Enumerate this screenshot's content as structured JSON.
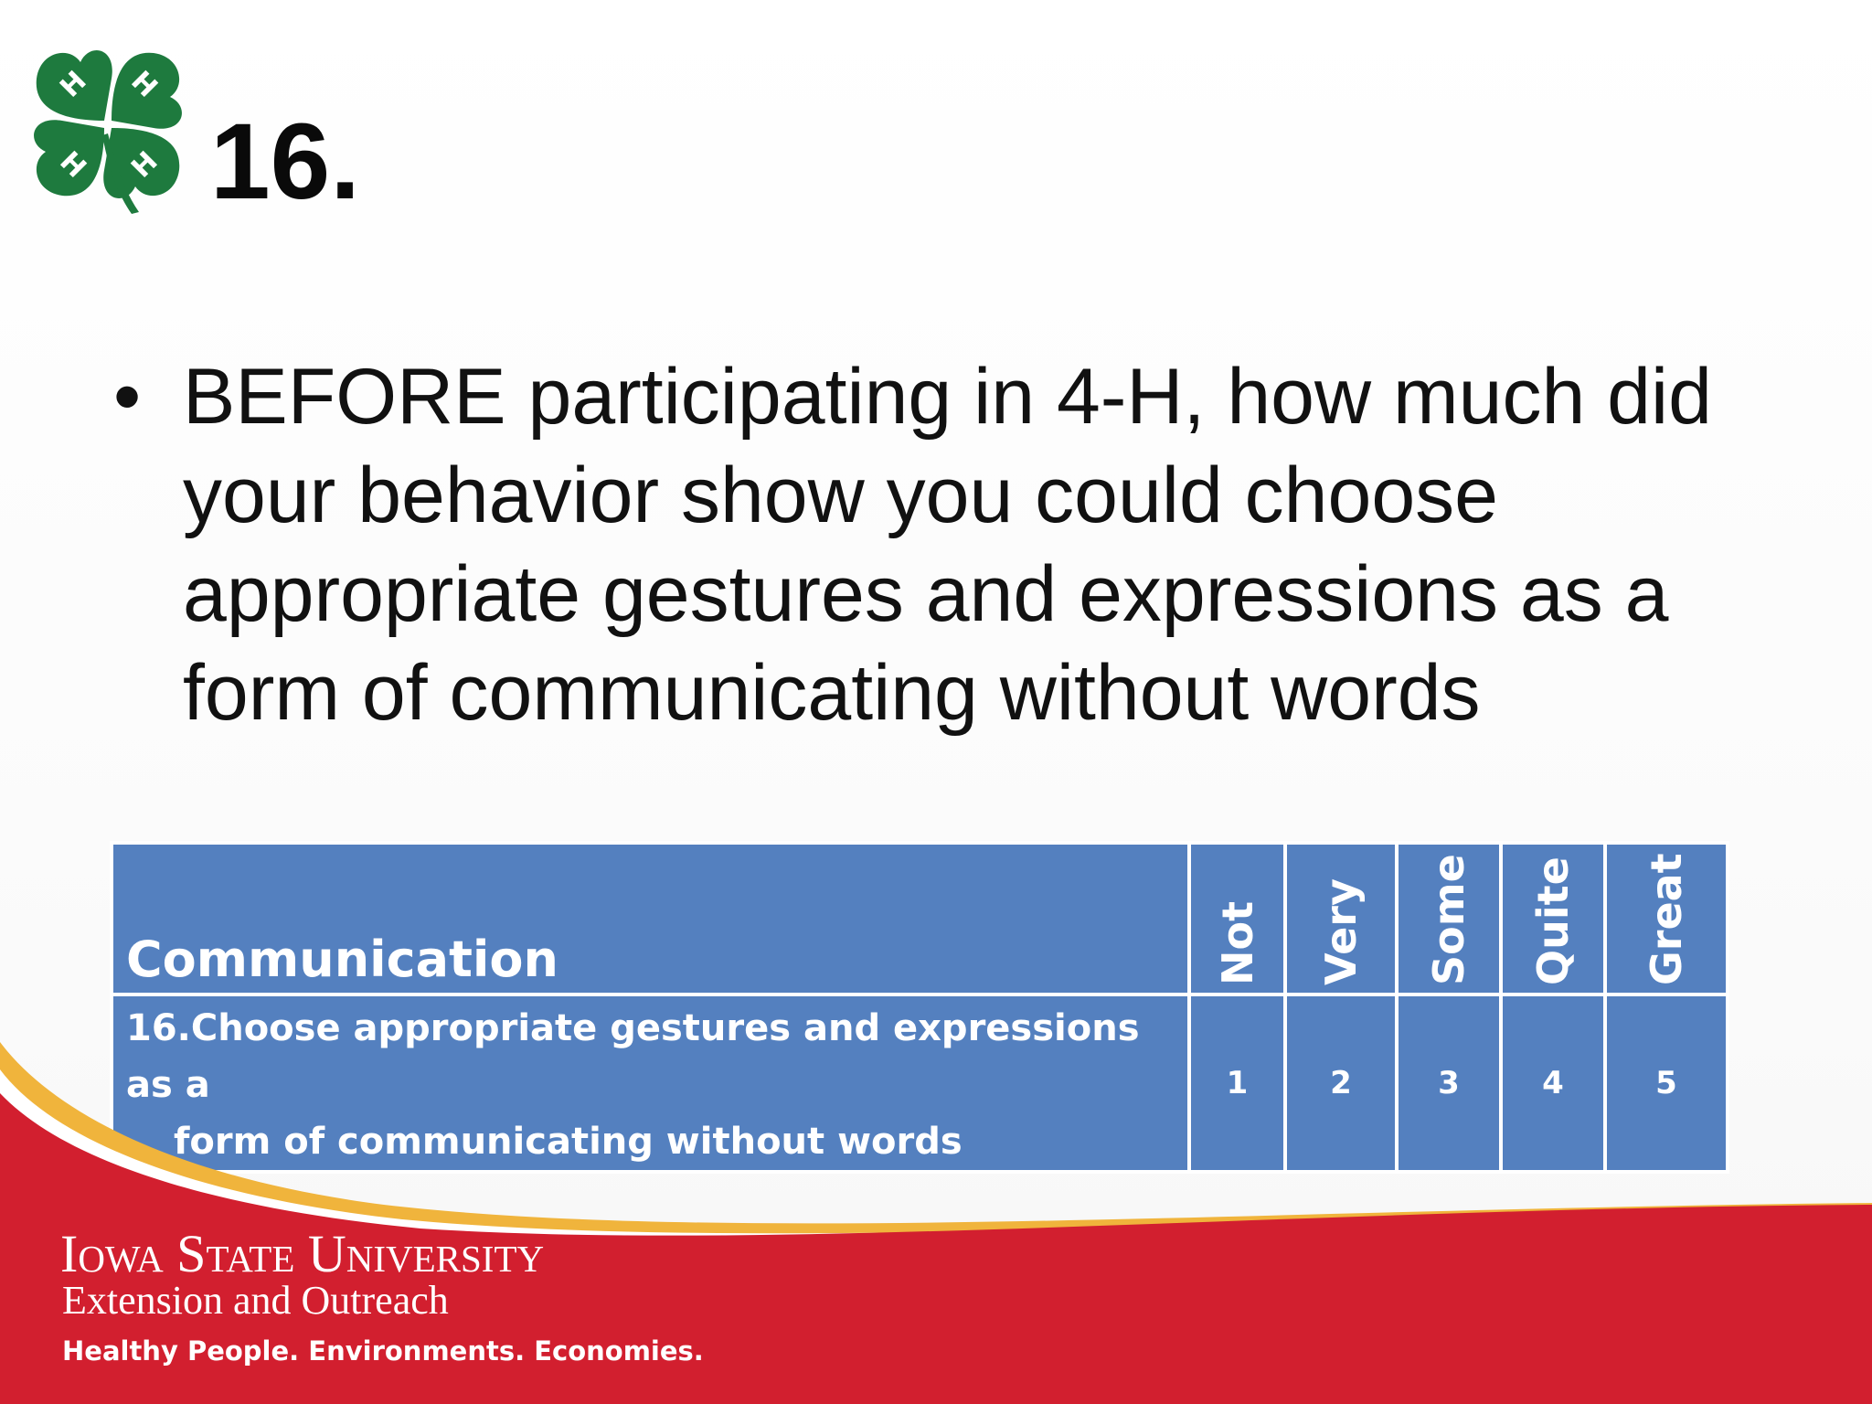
{
  "slide": {
    "number": "16."
  },
  "question": {
    "bullet": "•",
    "text": "BEFORE participating in 4-H, how much did your behavior show you could choose appropriate gestures and expressions as a form of communicating without words"
  },
  "table": {
    "header": {
      "category": "Communication",
      "scale_labels": [
        "Not",
        "Very",
        "Some",
        "Quite",
        "Great"
      ]
    },
    "row": {
      "item_line1": "16.Choose appropriate gestures and expressions as a",
      "item_line2": "form of communicating without words",
      "values": [
        "1",
        "2",
        "3",
        "4",
        "5"
      ]
    }
  },
  "footer": {
    "university": "Iowa State University",
    "unit": "Extension and Outreach",
    "tagline": "Healthy People. Environments. Economies."
  },
  "colors": {
    "table_blue": "#5480bf",
    "footer_red": "#d21f2f",
    "footer_gold": "#f0b43c",
    "clover_green": "#1e7a3e"
  },
  "icons": {
    "logo": "4-h-clover-logo"
  }
}
